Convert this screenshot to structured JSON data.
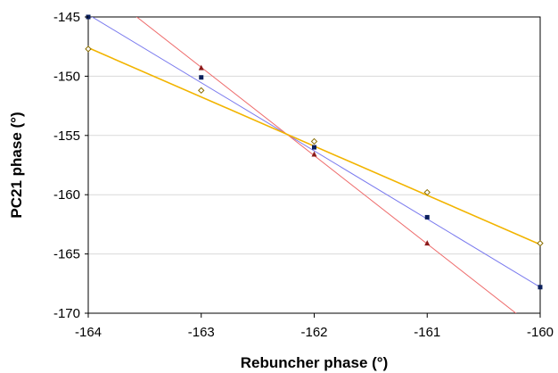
{
  "chart_data": {
    "type": "line",
    "xlabel": "Rebuncher phase (°)",
    "ylabel": "PC21 phase (°)",
    "xlim": [
      -164,
      -160
    ],
    "ylim": [
      -170,
      -145
    ],
    "x_ticks": [
      -164,
      -163,
      -162,
      -161,
      -160
    ],
    "y_ticks": [
      -145,
      -150,
      -155,
      -160,
      -165,
      -170
    ],
    "x_tick_labels": [
      "-164",
      "-163",
      "-162",
      "-161",
      "-160"
    ],
    "y_tick_labels": [
      "-145",
      "-150",
      "-155",
      "-160",
      "-165",
      "-170"
    ],
    "grid": "horizontal",
    "legend": "none",
    "series": [
      {
        "marker": "square",
        "line_color": "#7a7aee",
        "marker_color": "#0a1f5c",
        "data": [
          [
            -164,
            -145.0
          ],
          [
            -163,
            -150.1
          ],
          [
            -162,
            -156.0
          ],
          [
            -161,
            -161.9
          ],
          [
            -160,
            -167.8
          ]
        ],
        "fit": [
          [
            -164,
            -144.8
          ],
          [
            -160,
            -167.8
          ]
        ]
      },
      {
        "marker": "triangle",
        "line_color": "#ee6b6b",
        "marker_color": "#8b1a1a",
        "data": [
          [
            -163,
            -149.3
          ],
          [
            -162,
            -156.6
          ],
          [
            -161,
            -164.1
          ]
        ],
        "fit": [
          [
            -164,
            -141.8
          ],
          [
            -160,
            -171.6
          ]
        ]
      },
      {
        "marker": "diamond",
        "line_color": "#f2b400",
        "marker_color": "#8a6d00",
        "data": [
          [
            -164,
            -147.7
          ],
          [
            -163,
            -151.2
          ],
          [
            -162,
            -155.5
          ],
          [
            -161,
            -159.8
          ],
          [
            -160,
            -164.1
          ]
        ],
        "fit": [
          [
            -164,
            -147.6
          ],
          [
            -160,
            -164.2
          ]
        ]
      }
    ]
  }
}
